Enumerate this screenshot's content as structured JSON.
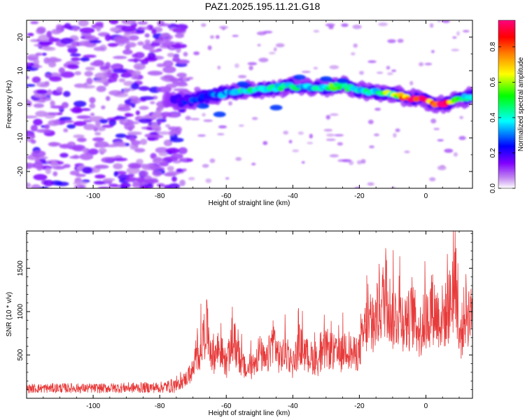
{
  "title": "PAZ1.2025.195.11.21.G18",
  "chart_data": [
    {
      "type": "heatmap",
      "xlabel": "Height of straight line (km)",
      "ylabel": "Frequency (Hz)",
      "xlim": [
        -120,
        14
      ],
      "ylim": [
        -25,
        25
      ],
      "xticks": [
        -100,
        -80,
        -60,
        -40,
        -20,
        0
      ],
      "yticks": [
        -20,
        -10,
        0,
        10,
        20
      ],
      "colorbar": {
        "label": "Normalized spectral amplitude",
        "range": [
          0,
          0.95
        ],
        "ticks": [
          0.0,
          0.2,
          0.4,
          0.6,
          0.8
        ],
        "colors": [
          "#ffffff",
          "#c48cf0",
          "#8000ff",
          "#0000ff",
          "#00ffff",
          "#00ff00",
          "#ffff00",
          "#ff8000",
          "#ff0000",
          "#ff0080"
        ]
      },
      "ridge": {
        "description_points_x": [
          -75,
          -70,
          -65,
          -60,
          -55,
          -50,
          -45,
          -40,
          -35,
          -30,
          -25,
          -20,
          -15,
          -10,
          -5,
          0,
          5,
          10,
          14
        ],
        "frequency_y": [
          1,
          1.5,
          2.5,
          3.5,
          4,
          4.5,
          5,
          5.5,
          5,
          5,
          5.5,
          4,
          3.5,
          3,
          2,
          1,
          0,
          1.5,
          2.5
        ],
        "amplitude": [
          0.2,
          0.25,
          0.3,
          0.35,
          0.4,
          0.45,
          0.4,
          0.45,
          0.4,
          0.5,
          0.55,
          0.45,
          0.4,
          0.6,
          0.8,
          0.85,
          0.95,
          0.45,
          0.35
        ]
      }
    },
    {
      "type": "line",
      "xlabel": "Height of straight line (km)",
      "ylabel": "SNR (10 * v/v)",
      "xlim": [
        -120,
        14
      ],
      "ylim": [
        0,
        1930
      ],
      "xticks": [
        -100,
        -80,
        -60,
        -40,
        -20,
        0
      ],
      "yticks": [
        500,
        1000,
        1500
      ],
      "series": [
        {
          "color": "#e83a3a",
          "x": [
            -120,
            -110,
            -100,
            -90,
            -80,
            -75,
            -72,
            -70,
            -68,
            -66,
            -64,
            -62,
            -60,
            -58,
            -56,
            -54,
            -52,
            -50,
            -48,
            -46,
            -44,
            -42,
            -40,
            -38,
            -36,
            -34,
            -32,
            -30,
            -28,
            -26,
            -24,
            -22,
            -20,
            -18,
            -16,
            -14,
            -12,
            -10,
            -8,
            -6,
            -4,
            -2,
            0,
            2,
            4,
            6,
            8,
            9,
            10,
            12,
            14
          ],
          "y": [
            120,
            130,
            125,
            135,
            140,
            180,
            300,
            420,
            700,
            1080,
            600,
            750,
            500,
            850,
            600,
            400,
            500,
            700,
            500,
            900,
            600,
            700,
            500,
            800,
            650,
            600,
            550,
            750,
            700,
            600,
            800,
            650,
            700,
            1100,
            1000,
            1350,
            1550,
            1200,
            1300,
            1100,
            1250,
            1000,
            1150,
            1350,
            1200,
            1250,
            1500,
            1920,
            800,
            1350,
            1150
          ]
        }
      ]
    }
  ]
}
